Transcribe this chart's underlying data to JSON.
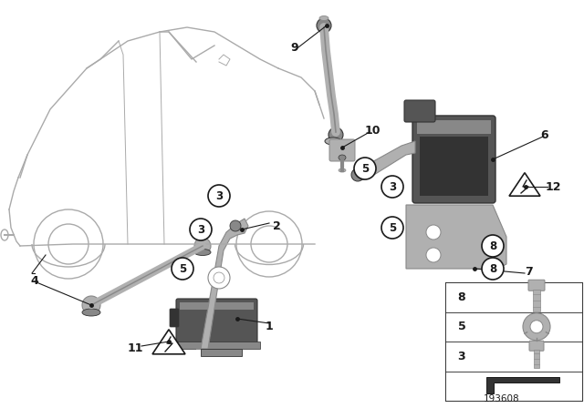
{
  "bg_color": "#ffffff",
  "diagram_id": "193608",
  "line_color": "#1a1a1a",
  "car_color": "#cccccc",
  "part_light": "#b0b0b0",
  "part_mid": "#888888",
  "part_dark": "#555555",
  "part_darker": "#333333"
}
